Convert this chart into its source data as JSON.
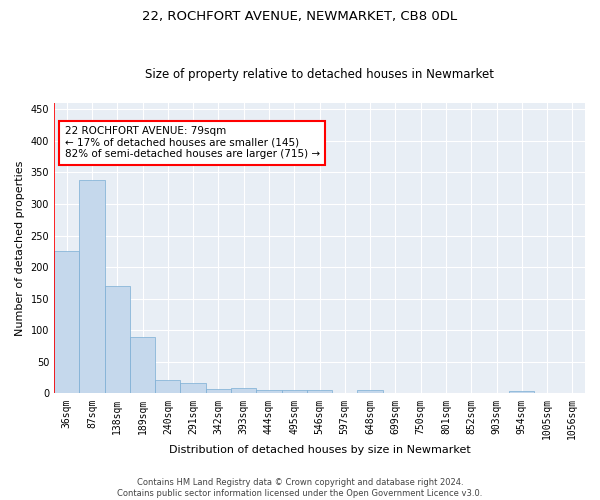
{
  "title": "22, ROCHFORT AVENUE, NEWMARKET, CB8 0DL",
  "subtitle": "Size of property relative to detached houses in Newmarket",
  "xlabel": "Distribution of detached houses by size in Newmarket",
  "ylabel": "Number of detached properties",
  "bar_color": "#c5d8ec",
  "bar_edgecolor": "#7aadd4",
  "background_color": "#e8eef5",
  "categories": [
    "36sqm",
    "87sqm",
    "138sqm",
    "189sqm",
    "240sqm",
    "291sqm",
    "342sqm",
    "393sqm",
    "444sqm",
    "495sqm",
    "546sqm",
    "597sqm",
    "648sqm",
    "699sqm",
    "750sqm",
    "801sqm",
    "852sqm",
    "903sqm",
    "954sqm",
    "1005sqm",
    "1056sqm"
  ],
  "values": [
    225,
    338,
    170,
    90,
    22,
    16,
    7,
    8,
    5,
    6,
    5,
    0,
    5,
    0,
    0,
    0,
    0,
    0,
    4,
    0,
    0
  ],
  "annotation_text": "22 ROCHFORT AVENUE: 79sqm\n← 17% of detached houses are smaller (145)\n82% of semi-detached houses are larger (715) →",
  "annotation_box_color": "white",
  "annotation_box_edgecolor": "red",
  "vline_color": "red",
  "vline_x": -0.5,
  "ylim": [
    0,
    460
  ],
  "yticks": [
    0,
    50,
    100,
    150,
    200,
    250,
    300,
    350,
    400,
    450
  ],
  "footnote": "Contains HM Land Registry data © Crown copyright and database right 2024.\nContains public sector information licensed under the Open Government Licence v3.0.",
  "title_fontsize": 9.5,
  "subtitle_fontsize": 8.5,
  "xlabel_fontsize": 8,
  "ylabel_fontsize": 8,
  "tick_fontsize": 7,
  "annotation_fontsize": 7.5,
  "footnote_fontsize": 6
}
